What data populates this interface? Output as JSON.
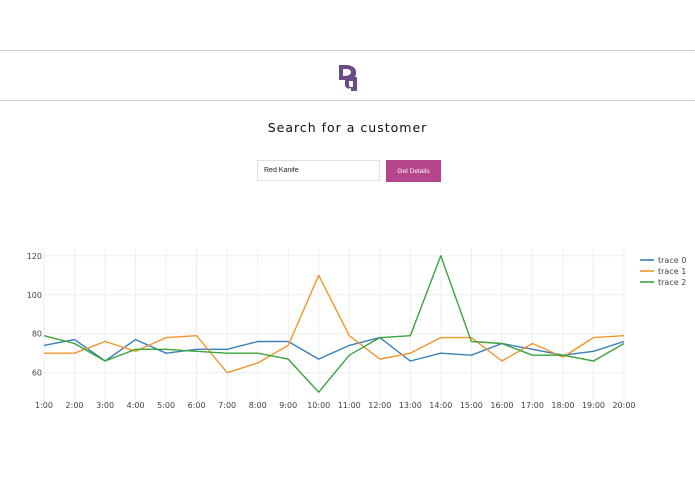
{
  "header": {
    "logo_name": "logo-icon"
  },
  "main": {
    "title": "Search for a customer",
    "search": {
      "value": "Red Kanife",
      "placeholder": ""
    },
    "button_label": "Get Details"
  },
  "colors": {
    "accent": "#b5468b",
    "logo": "#6b4a86",
    "trace0": "#3a7fb5",
    "trace1": "#f0962e",
    "trace2": "#3aa33a"
  },
  "chart_data": {
    "type": "line",
    "categories": [
      "1:00",
      "2:00",
      "3:00",
      "4:00",
      "5:00",
      "6:00",
      "7:00",
      "8:00",
      "9:00",
      "10:00",
      "11:00",
      "12:00",
      "13:00",
      "14:00",
      "15:00",
      "16:00",
      "17:00",
      "18:00",
      "19:00",
      "20:00"
    ],
    "yticks": [
      60,
      80,
      100,
      120
    ],
    "ylim": [
      46,
      124
    ],
    "grid": true,
    "legend_position": "top-right",
    "series": [
      {
        "name": "trace 0",
        "color": "#3a7fb5",
        "values": [
          74,
          77,
          66,
          77,
          70,
          72,
          72,
          76,
          76,
          67,
          74,
          78,
          66,
          70,
          69,
          75,
          72,
          69,
          71,
          76
        ]
      },
      {
        "name": "trace 1",
        "color": "#f0962e",
        "values": [
          70,
          70,
          76,
          71,
          78,
          79,
          60,
          65,
          74,
          110,
          79,
          67,
          70,
          78,
          78,
          66,
          75,
          68,
          78,
          79
        ]
      },
      {
        "name": "trace 2",
        "color": "#3aa33a",
        "values": [
          79,
          75,
          66,
          72,
          72,
          71,
          70,
          70,
          67,
          50,
          69,
          78,
          79,
          120,
          76,
          75,
          69,
          69,
          66,
          75
        ]
      }
    ]
  }
}
